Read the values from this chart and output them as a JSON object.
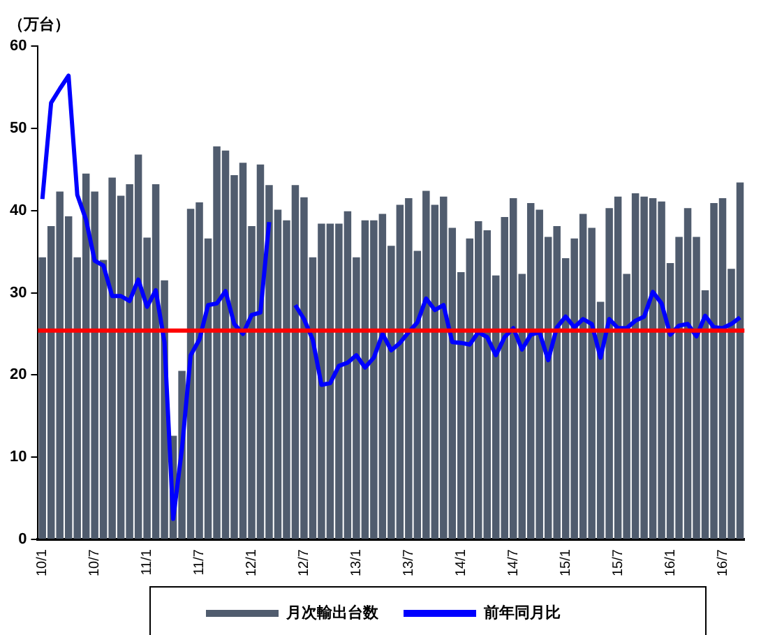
{
  "chart_data": {
    "type": "bar",
    "ylabel": "（万台）",
    "categories": [
      "10/1",
      null,
      null,
      null,
      null,
      null,
      "10/7",
      null,
      null,
      null,
      null,
      null,
      "11/1",
      null,
      null,
      null,
      null,
      null,
      "11/7",
      null,
      null,
      null,
      null,
      null,
      "12/1",
      null,
      null,
      null,
      null,
      null,
      "12/7",
      null,
      null,
      null,
      null,
      null,
      "13/1",
      null,
      null,
      null,
      null,
      null,
      "13/7",
      null,
      null,
      null,
      null,
      null,
      "14/1",
      null,
      null,
      null,
      null,
      null,
      "14/7",
      null,
      null,
      null,
      null,
      null,
      "15/1",
      null,
      null,
      null,
      null,
      null,
      "15/7",
      null,
      null,
      null,
      null,
      null,
      "16/1",
      null,
      null,
      null,
      null,
      null,
      "16/7",
      null,
      null
    ],
    "series": [
      {
        "name": "月次輸出台数",
        "color": "#505c6e",
        "values": [
          34.3,
          38.1,
          42.3,
          39.3,
          34.3,
          44.5,
          42.3,
          34,
          44,
          41.8,
          43.2,
          46.8,
          36.7,
          43.2,
          31.5,
          12.6,
          20.5,
          40.2,
          41,
          36.6,
          47.8,
          47.3,
          44.3,
          45.8,
          38.1,
          45.6,
          43.1,
          40.1,
          38.8,
          43.1,
          41.6,
          34.3,
          38.4,
          38.4,
          38.4,
          39.9,
          34.3,
          38.8,
          38.8,
          39.6,
          35.7,
          40.7,
          41.5,
          35.1,
          42.4,
          40.7,
          41.7,
          37.9,
          32.5,
          36.6,
          38.7,
          37.6,
          32.1,
          39.2,
          41.5,
          32.3,
          40.9,
          40.1,
          36.8,
          38.1,
          34.2,
          36.6,
          39.6,
          37.9,
          28.9,
          40.3,
          41.7,
          32.3,
          42.1,
          41.7,
          41.5,
          41.1,
          33.6,
          36.8,
          40.3,
          36.8,
          30.3,
          40.9,
          41.5,
          32.9,
          43.4
        ]
      },
      {
        "name": "前年同月比",
        "type": "line",
        "color": "#0000ff",
        "values": [
          41.4,
          53.1,
          54.8,
          56.4,
          41.9,
          38.9,
          33.9,
          33.3,
          29.6,
          29.6,
          29,
          31.6,
          28.3,
          30.3,
          24,
          2.5,
          11,
          22.4,
          24.3,
          28.5,
          28.7,
          30.2,
          26.2,
          25,
          27.3,
          27.6,
          38.6,
          null,
          null,
          28.5,
          26.8,
          24.3,
          18.8,
          19,
          21.1,
          21.5,
          22.4,
          20.9,
          22.1,
          25,
          23,
          23.9,
          25.2,
          26.4,
          29.3,
          27.9,
          28.5,
          24,
          23.9,
          23.7,
          25.2,
          24.6,
          22.4,
          24.6,
          25.7,
          23.1,
          24.9,
          25.2,
          21.8,
          25.8,
          27.1,
          25.8,
          26.8,
          26.2,
          22.1,
          26.8,
          25.7,
          25.7,
          26.6,
          27.1,
          30.1,
          28.7,
          24.9,
          26,
          26.2,
          24.7,
          27.2,
          25.8,
          25.7,
          26.2,
          27
        ]
      }
    ],
    "ylim": [
      0,
      60
    ],
    "yticks": [
      0,
      10,
      20,
      30,
      40,
      50,
      60
    ],
    "ref_lines": [
      {
        "axis": "y",
        "value": 25.4,
        "color": "#ff0000"
      }
    ],
    "legend": "bottom",
    "grid": false,
    "marker": "none"
  }
}
